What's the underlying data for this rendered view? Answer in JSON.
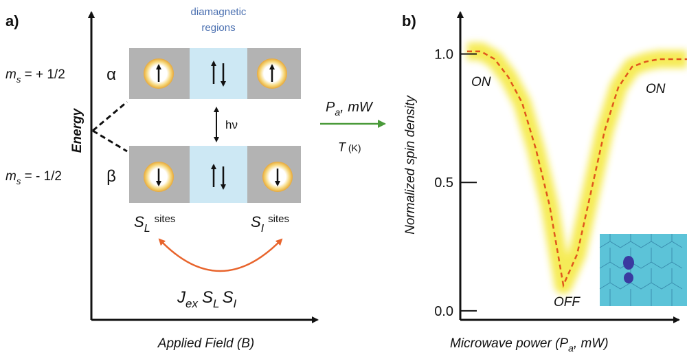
{
  "panel_a": {
    "label": "a)",
    "header": [
      "diamagnetic",
      "regions"
    ],
    "y_axis_label": "Energy",
    "x_axis_label": "Applied Field (B)",
    "upper_state": {
      "label": [
        "m",
        "s",
        " = + 1/2"
      ],
      "symbol": "α"
    },
    "lower_state": {
      "label": [
        "m",
        "s",
        " = - 1/2"
      ],
      "symbol": "β"
    },
    "transition": "hν",
    "sites": [
      [
        "S",
        "L",
        "sites"
      ],
      [
        "S",
        "I",
        "sites"
      ]
    ],
    "exchange": [
      "J",
      "ex",
      "S",
      "L",
      "S",
      "I"
    ]
  },
  "conditions": {
    "top": [
      "P",
      "a",
      ", mW"
    ],
    "bottom": [
      "T",
      " (K)"
    ]
  },
  "chart_data": {
    "type": "line",
    "label": "b)",
    "y_label": "Normalized spin density",
    "x_label": [
      "Microwave power (P",
      "a",
      ", mW)"
    ],
    "annotations": [
      "ON",
      "OFF",
      "ON"
    ],
    "categories": [
      null,
      null,
      null,
      null,
      null,
      null,
      null,
      null,
      null,
      null,
      null,
      null,
      null,
      null,
      null,
      null,
      null
    ],
    "series": [
      {
        "color": "#e0561e",
        "values": [
          1.01,
          1.01,
          0.98,
          0.91,
          0.81,
          0.63,
          0.41,
          0.1,
          0.22,
          0.46,
          0.7,
          0.87,
          0.95,
          0.97,
          0.98,
          0.98,
          0.98
        ]
      }
    ],
    "ylim": [
      -0.035,
      1.17
    ],
    "yticks": [
      {
        "value": 0,
        "label": "0.0"
      },
      0.5,
      {
        "value": 1,
        "label": "1.0"
      }
    ]
  }
}
